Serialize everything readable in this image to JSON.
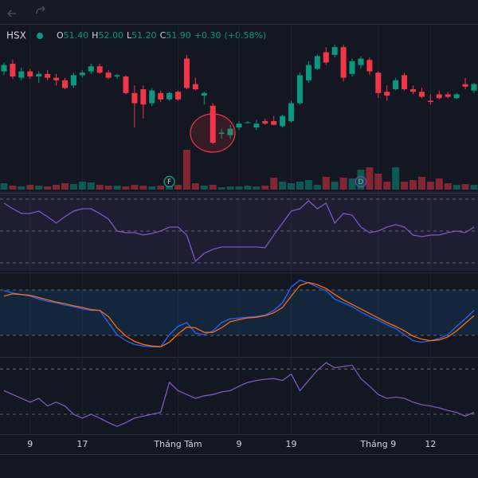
{
  "header": {
    "symbol": "HSX",
    "ohlc": [
      {
        "name": "O",
        "value": {
          "value": 51.4,
          "label": "51.40"
        }
      },
      {
        "name": "H",
        "value": {
          "value": 52,
          "label": "52.00"
        }
      },
      {
        "name": "L",
        "value": {
          "value": 51.2,
          "label": "51.20"
        }
      },
      {
        "name": "C",
        "value": {
          "value": 51.9,
          "label": "51.90"
        }
      }
    ],
    "change": {
      "value": 0.3,
      "label": "+0.30"
    },
    "change_pct": {
      "value": 0.58,
      "label": "(+0.58%)"
    }
  },
  "chart_data": [
    {
      "type": "candlestick",
      "categories": [
        null,
        null,
        null,
        "9",
        null,
        null,
        null,
        null,
        null,
        "17",
        null,
        null,
        null,
        null,
        null,
        null,
        null,
        null,
        null,
        null,
        "Tháng Tám",
        null,
        null,
        null,
        null,
        null,
        null,
        "9",
        null,
        null,
        null,
        null,
        null,
        "19",
        null,
        null,
        null,
        null,
        null,
        null,
        null,
        null,
        null,
        "Tháng 9",
        null,
        null,
        null,
        null,
        null,
        "12",
        null,
        null,
        null,
        null,
        null
      ],
      "open": [
        52.9,
        53.5,
        52.4,
        52.9,
        52.5,
        52.7,
        52.4,
        52.2,
        51.8,
        52.6,
        52.9,
        53.3,
        52.8,
        52.5,
        52.5,
        51.2,
        51.5,
        50.4,
        51.2,
        50.7,
        51.3,
        53.9,
        51.9,
        51.0,
        50.2,
        48.0,
        47.9,
        48.5,
        48.9,
        48.5,
        49.0,
        49.0,
        48.6,
        49.0,
        50.4,
        52.2,
        53.1,
        54.4,
        54.2,
        54.8,
        52.7,
        53.4,
        53.8,
        52.8,
        51.3,
        51.5,
        52.6,
        51.5,
        51.3,
        50.6,
        51.1,
        51.1,
        50.8,
        51.9,
        51.4
      ],
      "high": [
        53.6,
        53.8,
        53.2,
        53.1,
        52.9,
        53.0,
        52.7,
        52.4,
        52.8,
        53.0,
        53.5,
        53.5,
        53.0,
        52.7,
        52.6,
        51.8,
        51.8,
        51.6,
        51.4,
        51.3,
        51.4,
        54.2,
        52.4,
        51.3,
        50.4,
        48.4,
        48.7,
        49.0,
        49.0,
        49.1,
        49.2,
        49.4,
        49.5,
        50.6,
        52.8,
        53.7,
        54.2,
        54.8,
        55.0,
        55.0,
        53.9,
        54.1,
        54.0,
        52.9,
        51.8,
        52.4,
        52.8,
        51.8,
        51.6,
        51.1,
        51.4,
        51.3,
        51.2,
        52.4,
        52.0
      ],
      "low": [
        52.6,
        52.3,
        52.2,
        52.3,
        52.0,
        52.2,
        51.8,
        51.5,
        51.6,
        52.4,
        52.7,
        52.7,
        52.3,
        52.3,
        51.1,
        48.5,
        49.2,
        50.2,
        50.5,
        50.6,
        50.6,
        51.5,
        51.4,
        50.3,
        47.2,
        47.6,
        47.6,
        48.3,
        48.8,
        48.3,
        48.7,
        48.7,
        48.5,
        48.9,
        50.3,
        52.0,
        53.0,
        53.4,
        54.0,
        52.1,
        52.5,
        53.1,
        52.6,
        50.8,
        50.6,
        51.4,
        51.4,
        51.1,
        50.8,
        50.3,
        50.7,
        50.8,
        50.7,
        51.5,
        51.2
      ],
      "close": [
        53.4,
        52.5,
        52.9,
        52.5,
        52.7,
        52.4,
        52.2,
        51.6,
        52.6,
        52.8,
        53.3,
        52.8,
        52.4,
        52.6,
        51.2,
        50.4,
        50.3,
        51.4,
        50.7,
        51.2,
        50.7,
        51.6,
        51.5,
        51.2,
        47.3,
        48.1,
        48.4,
        48.8,
        48.9,
        48.8,
        48.8,
        48.7,
        49.4,
        50.4,
        52.6,
        53.4,
        54.1,
        53.6,
        54.8,
        52.4,
        53.7,
        53.9,
        52.9,
        51.2,
        51.0,
        52.2,
        51.5,
        51.3,
        50.9,
        50.5,
        50.8,
        50.9,
        51.1,
        51.7,
        51.9
      ],
      "ylim": [
        46,
        56
      ],
      "up_color": "#089981",
      "down_color": "#f23645",
      "events": [
        {
          "index": 19,
          "label": "F",
          "color": "#089981"
        },
        {
          "index": 41,
          "label": "D",
          "color": "#9c27b0"
        }
      ]
    },
    {
      "type": "bar",
      "values": [
        8,
        5,
        4,
        6,
        5,
        4,
        6,
        8,
        7,
        10,
        9,
        6,
        5,
        5,
        4,
        6,
        5,
        4,
        5,
        5,
        6,
        50,
        8,
        5,
        6,
        3,
        4,
        4,
        5,
        4,
        5,
        15,
        10,
        8,
        10,
        12,
        6,
        16,
        10,
        15,
        14,
        25,
        28,
        20,
        10,
        28,
        10,
        12,
        16,
        10,
        14,
        8,
        6,
        7,
        6
      ],
      "ylim": [
        0,
        100
      ]
    },
    {
      "type": "line",
      "series": [
        {
          "color": "#7e57c2",
          "values": [
            85,
            78,
            72,
            72,
            75,
            68,
            60,
            68,
            75,
            78,
            78,
            72,
            65,
            50,
            48,
            48,
            45,
            47,
            50,
            55,
            55,
            45,
            12,
            22,
            27,
            30,
            30,
            30,
            30,
            30,
            29,
            45,
            60,
            75,
            78,
            88,
            78,
            85,
            60,
            72,
            70,
            55,
            48,
            50,
            55,
            58,
            55,
            45,
            43,
            45,
            45,
            48,
            50,
            48,
            55
          ]
        }
      ],
      "ylim": [
        0,
        100
      ],
      "levels": [
        90,
        50,
        10
      ],
      "fill": "rgba(126,87,194,0.10)"
    },
    {
      "type": "line",
      "series": [
        {
          "color": "#2962ff",
          "values": [
            79,
            76,
            74,
            72,
            68,
            65,
            63,
            60,
            58,
            55,
            53,
            53,
            37,
            21,
            13,
            8,
            6,
            5,
            5,
            21,
            32,
            37,
            23,
            21,
            26,
            37,
            42,
            43,
            44,
            45,
            47,
            53,
            63,
            84,
            93,
            89,
            84,
            79,
            68,
            63,
            58,
            51,
            45,
            40,
            34,
            29,
            21,
            13,
            11,
            13,
            16,
            21,
            32,
            42,
            53
          ]
        },
        {
          "color": "#ff6d00",
          "values": [
            72,
            75,
            74,
            73,
            70,
            67,
            64,
            62,
            59,
            57,
            54,
            53,
            45,
            30,
            19,
            12,
            8,
            6,
            5,
            11,
            22,
            31,
            30,
            24,
            24,
            30,
            38,
            41,
            43,
            44,
            46,
            50,
            57,
            72,
            86,
            90,
            87,
            82,
            74,
            67,
            61,
            55,
            49,
            43,
            37,
            32,
            26,
            19,
            15,
            13,
            14,
            18,
            26,
            36,
            46
          ]
        }
      ],
      "ylim": [
        0,
        100
      ],
      "levels": [
        80,
        20
      ],
      "fill": "rgba(33,150,243,0.12)"
    },
    {
      "type": "line",
      "series": [
        {
          "color": "#7e57c2",
          "values": [
            62,
            56,
            50,
            44,
            50,
            38,
            44,
            38,
            25,
            19,
            25,
            19,
            12,
            6,
            12,
            19,
            22,
            25,
            28,
            75,
            62,
            56,
            50,
            54,
            56,
            60,
            62,
            69,
            75,
            78,
            80,
            81,
            78,
            88,
            62,
            78,
            94,
            106,
            98,
            100,
            102,
            81,
            69,
            56,
            50,
            52,
            50,
            44,
            40,
            38,
            35,
            31,
            28,
            22,
            28
          ]
        }
      ],
      "ylim": [
        0,
        110
      ],
      "levels": [
        96,
        25
      ]
    }
  ]
}
